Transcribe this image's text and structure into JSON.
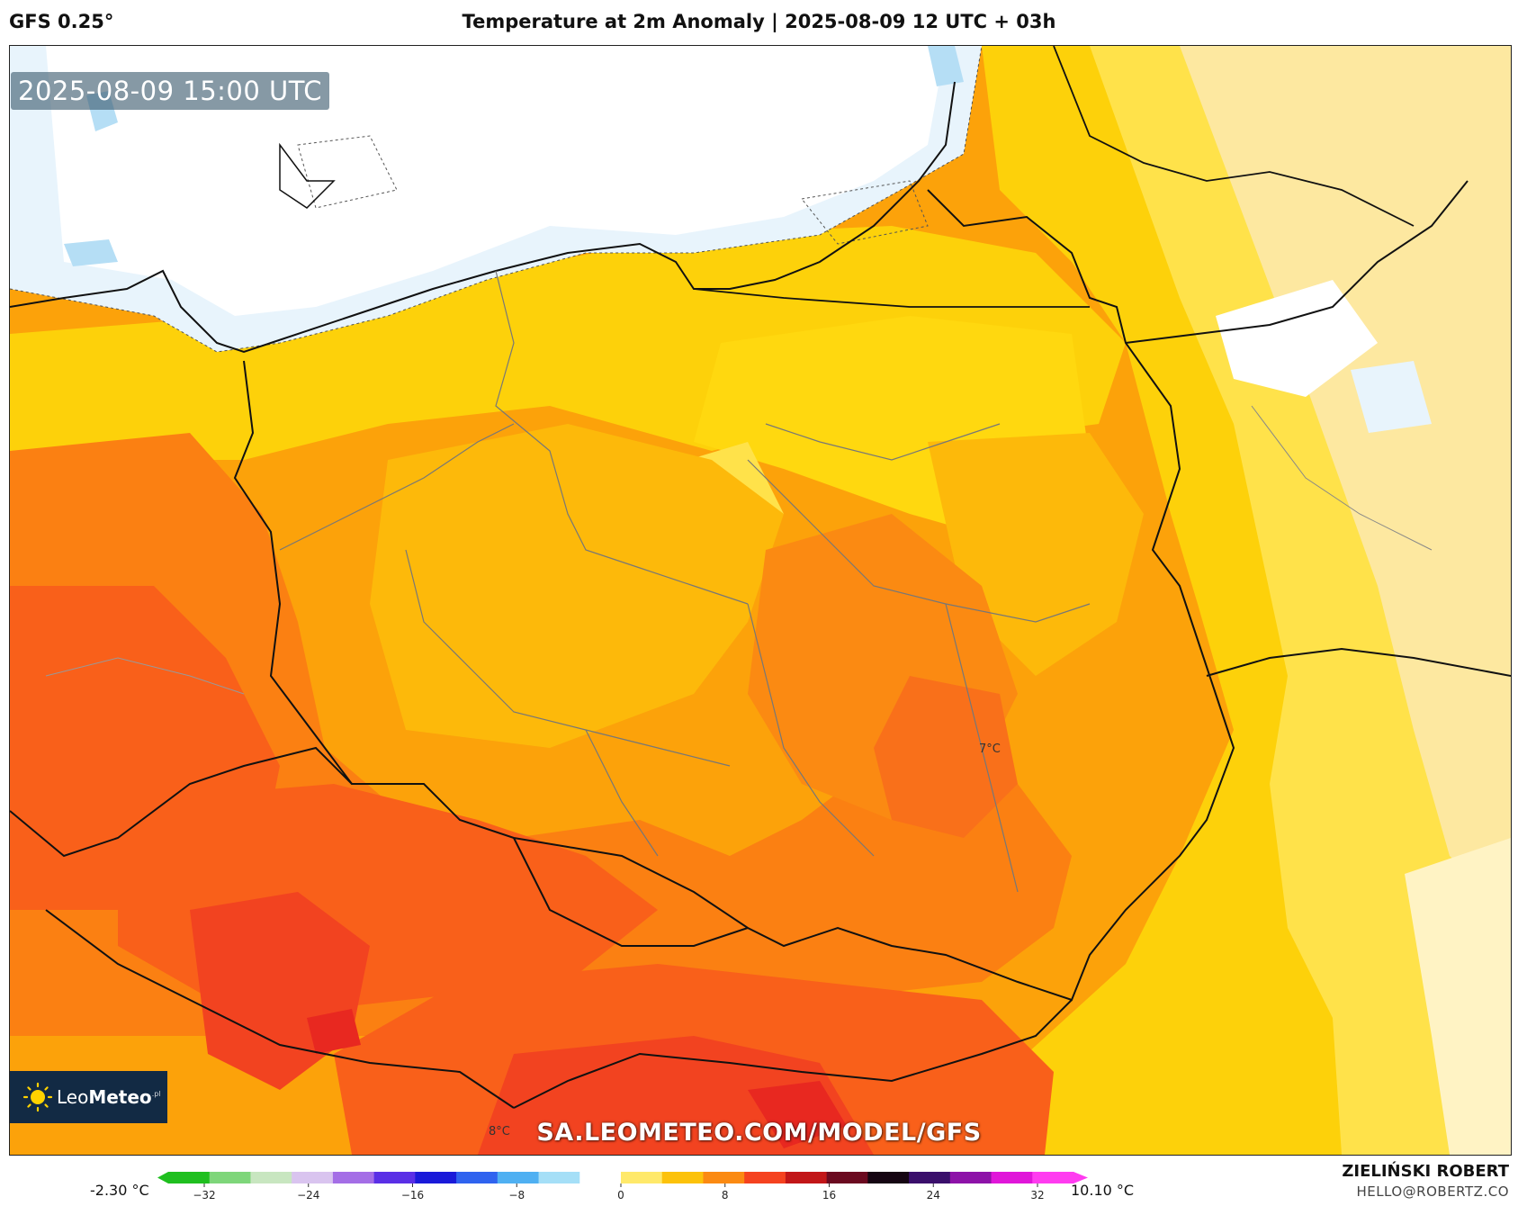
{
  "header": {
    "model": "GFS 0.25°",
    "title": "Temperature at 2m Anomaly | 2025-08-09 12 UTC + 03h"
  },
  "map": {
    "timestamp": "2025-08-09 15:00 UTC",
    "watermark": "SA.LEOMETEO.COM/MODEL/GFS",
    "point_labels": [
      "7°C",
      "8°C"
    ],
    "region": "Poland and surroundings",
    "colors": {
      "sea": "#ffffff",
      "cool": "#e8f4fc",
      "light_blue": "#b5def5",
      "pale_yellow": "#fff3c4",
      "light_yellow": "#fde8a0",
      "yellow": "#ffe24a",
      "gold": "#fdd10a",
      "amber": "#fdb90a",
      "orange": "#fca20a",
      "dark_orange": "#fb8012",
      "red_orange": "#f9601a",
      "red": "#f24320",
      "deep_red": "#e82820"
    }
  },
  "logo": {
    "brand_light": "Leo",
    "brand_bold": "Meteo",
    "brand_suffix": ".pl",
    "icon": "sun-icon"
  },
  "colorbar": {
    "min_label": "-2.30 °C",
    "max_label": "10.10 °C",
    "ticks": [
      "−32",
      "−24",
      "−16",
      "−8",
      "0",
      "8",
      "16",
      "24",
      "32"
    ],
    "stops": [
      "#1fbf1f",
      "#7ed67a",
      "#c8e6c0",
      "#d9c4ef",
      "#a46ee6",
      "#5a2fe6",
      "#1a1ad9",
      "#2f63ef",
      "#4fb0f2",
      "#a5dff7",
      "#ffffff",
      "#ffe96a",
      "#fcc20a",
      "#fb8a12",
      "#f5421f",
      "#c21618",
      "#6b0a20",
      "#150512",
      "#3a0f6b",
      "#8d12a8",
      "#e016d9",
      "#ff3cf0"
    ]
  },
  "footer": {
    "author": "ZIELIŃSKI ROBERT",
    "email": "HELLO@ROBERTZ.CO"
  }
}
